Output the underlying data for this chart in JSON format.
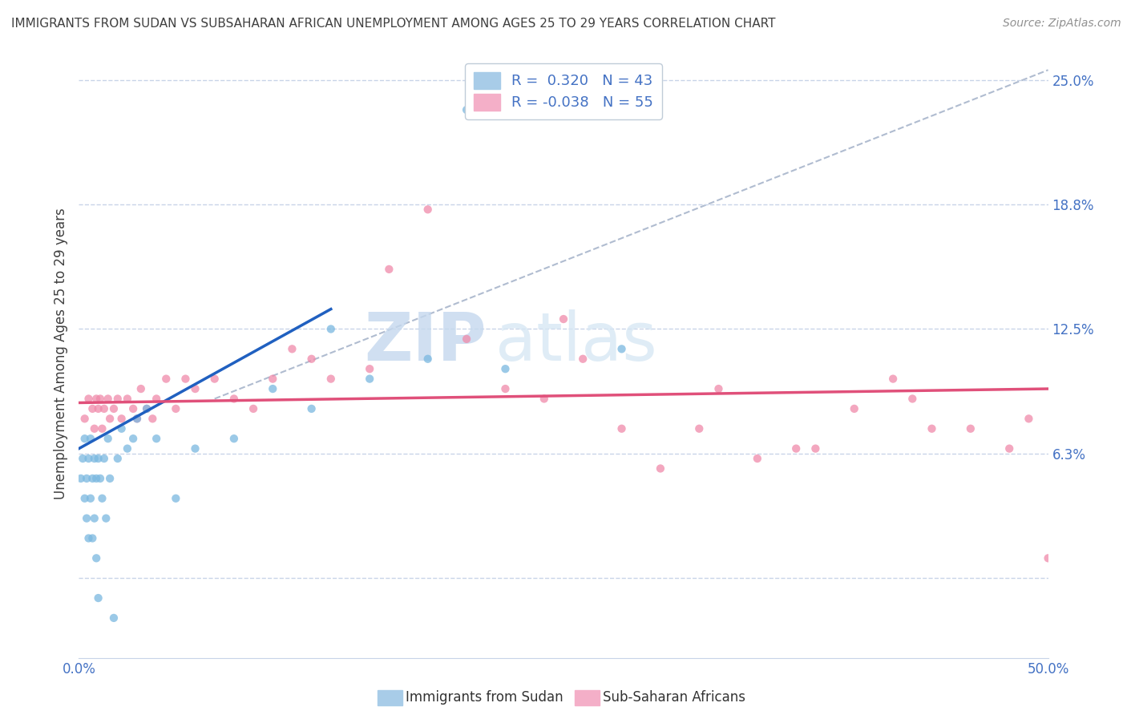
{
  "title": "IMMIGRANTS FROM SUDAN VS SUBSAHARAN AFRICAN UNEMPLOYMENT AMONG AGES 25 TO 29 YEARS CORRELATION CHART",
  "source": "Source: ZipAtlas.com",
  "ylabel": "Unemployment Among Ages 25 to 29 years",
  "xlim": [
    0.0,
    0.5
  ],
  "ylim": [
    -0.04,
    0.265
  ],
  "ytick_positions": [
    0.0,
    0.0625,
    0.125,
    0.1875,
    0.25
  ],
  "ytick_labels": [
    "",
    "6.3%",
    "12.5%",
    "18.8%",
    "25.0%"
  ],
  "sudan_scatter_x": [
    0.001,
    0.002,
    0.003,
    0.003,
    0.004,
    0.004,
    0.005,
    0.005,
    0.006,
    0.006,
    0.007,
    0.007,
    0.008,
    0.008,
    0.009,
    0.009,
    0.01,
    0.01,
    0.011,
    0.012,
    0.013,
    0.014,
    0.015,
    0.016,
    0.018,
    0.02,
    0.022,
    0.025,
    0.028,
    0.03,
    0.035,
    0.04,
    0.05,
    0.06,
    0.08,
    0.1,
    0.12,
    0.13,
    0.15,
    0.18,
    0.22,
    0.28,
    0.2
  ],
  "sudan_scatter_y": [
    0.05,
    0.06,
    0.04,
    0.07,
    0.05,
    0.03,
    0.06,
    0.02,
    0.07,
    0.04,
    0.05,
    0.02,
    0.06,
    0.03,
    0.05,
    0.01,
    0.06,
    -0.01,
    0.05,
    0.04,
    0.06,
    0.03,
    0.07,
    0.05,
    -0.02,
    0.06,
    0.075,
    0.065,
    0.07,
    0.08,
    0.085,
    0.07,
    0.04,
    0.065,
    0.07,
    0.095,
    0.085,
    0.125,
    0.1,
    0.11,
    0.105,
    0.115,
    0.235
  ],
  "subsaharan_scatter_x": [
    0.003,
    0.005,
    0.007,
    0.008,
    0.009,
    0.01,
    0.011,
    0.012,
    0.013,
    0.015,
    0.016,
    0.018,
    0.02,
    0.022,
    0.025,
    0.028,
    0.03,
    0.032,
    0.035,
    0.038,
    0.04,
    0.045,
    0.05,
    0.055,
    0.06,
    0.07,
    0.08,
    0.09,
    0.1,
    0.11,
    0.12,
    0.13,
    0.15,
    0.16,
    0.18,
    0.2,
    0.22,
    0.24,
    0.26,
    0.3,
    0.32,
    0.35,
    0.38,
    0.4,
    0.42,
    0.44,
    0.46,
    0.48,
    0.49,
    0.5,
    0.25,
    0.28,
    0.33,
    0.37,
    0.43
  ],
  "subsaharan_scatter_y": [
    0.08,
    0.09,
    0.085,
    0.075,
    0.09,
    0.085,
    0.09,
    0.075,
    0.085,
    0.09,
    0.08,
    0.085,
    0.09,
    0.08,
    0.09,
    0.085,
    0.08,
    0.095,
    0.085,
    0.08,
    0.09,
    0.1,
    0.085,
    0.1,
    0.095,
    0.1,
    0.09,
    0.085,
    0.1,
    0.115,
    0.11,
    0.1,
    0.105,
    0.155,
    0.185,
    0.12,
    0.095,
    0.09,
    0.11,
    0.055,
    0.075,
    0.06,
    0.065,
    0.085,
    0.1,
    0.075,
    0.075,
    0.065,
    0.08,
    0.01,
    0.13,
    0.075,
    0.095,
    0.065,
    0.09
  ],
  "sudan_line_x": [
    0.0,
    0.13
  ],
  "sudan_line_y": [
    0.065,
    0.135
  ],
  "subsaharan_line_x": [
    0.0,
    0.5
  ],
  "subsaharan_line_y": [
    0.088,
    0.095
  ],
  "diagonal_line_x": [
    0.07,
    0.5
  ],
  "diagonal_line_y": [
    0.09,
    0.255
  ],
  "scatter_size": 55,
  "sudan_color": "#7ab8e0",
  "subsaharan_color": "#f08aaa",
  "sudan_line_color": "#2060c0",
  "subsaharan_line_color": "#e0507a",
  "diagonal_color": "#b0bcd0",
  "watermark_zip": "ZIP",
  "watermark_atlas": "atlas",
  "background_color": "#ffffff",
  "grid_color": "#c8d4e8",
  "title_color": "#404040",
  "axis_label_color": "#404040",
  "tick_label_color": "#4472c4"
}
